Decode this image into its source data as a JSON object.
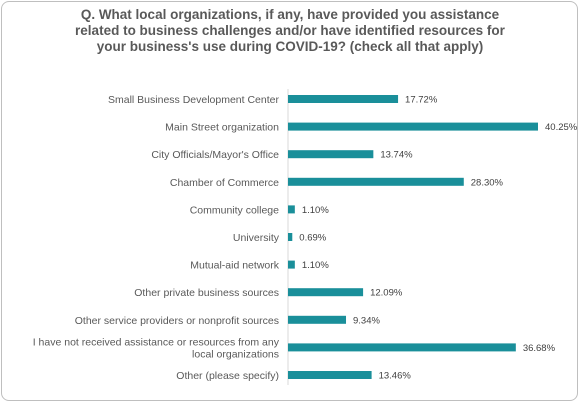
{
  "chart_data": {
    "type": "bar",
    "orientation": "horizontal",
    "title": "Q. What local organizations, if any, have provided you assistance related to business challenges and/or have identified resources for your business's use during COVID-19? (check all that apply)",
    "categories": [
      [
        "Small Business Development Center"
      ],
      [
        "Main Street organization"
      ],
      [
        "City Officials/Mayor's Office"
      ],
      [
        "Chamber of Commerce"
      ],
      [
        "Community college"
      ],
      [
        "University"
      ],
      [
        "Mutual-aid network"
      ],
      [
        "Other private business sources"
      ],
      [
        "Other service providers or nonprofit sources"
      ],
      [
        "I have not received assistance or resources from any",
        "local organizations"
      ],
      [
        "Other (please specify)"
      ]
    ],
    "values": [
      17.72,
      40.25,
      13.74,
      28.3,
      1.1,
      0.69,
      1.1,
      12.09,
      9.34,
      36.68,
      13.46
    ],
    "value_labels": [
      "17.72%",
      "40.25%",
      "13.74%",
      "28.30%",
      "1.10%",
      "0.69%",
      "1.10%",
      "12.09%",
      "9.34%",
      "36.68%",
      "13.46%"
    ],
    "xlim": [
      0,
      40.25
    ],
    "grid": false,
    "legend": "none",
    "bar_color": "#1a8f9a"
  }
}
